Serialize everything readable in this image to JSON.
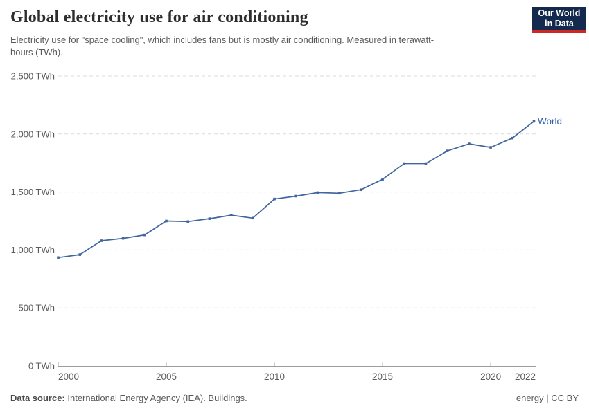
{
  "header": {
    "title": "Global electricity use for air conditioning",
    "subtitle": "Electricity use for \"space cooling\", which includes fans but is mostly air conditioning. Measured in terawatt-hours (TWh)."
  },
  "logo": {
    "line1": "Our World",
    "line2": "in Data"
  },
  "chart_data": {
    "type": "line",
    "title": "Global electricity use for air conditioning",
    "unit": "TWh",
    "x": [
      2000,
      2001,
      2002,
      2003,
      2004,
      2005,
      2006,
      2007,
      2008,
      2009,
      2010,
      2011,
      2012,
      2013,
      2014,
      2015,
      2016,
      2017,
      2018,
      2019,
      2020,
      2021,
      2022
    ],
    "series": [
      {
        "name": "World",
        "values": [
          935,
          960,
          1080,
          1100,
          1130,
          1250,
          1245,
          1270,
          1300,
          1275,
          1440,
          1465,
          1495,
          1490,
          1520,
          1610,
          1745,
          1745,
          1855,
          1915,
          1885,
          1965,
          2110
        ]
      }
    ],
    "ylim": [
      0,
      2500
    ],
    "yticks": [
      {
        "value": 0,
        "label": "0 TWh"
      },
      {
        "value": 500,
        "label": "500 TWh"
      },
      {
        "value": 1000,
        "label": "1,000 TWh"
      },
      {
        "value": 1500,
        "label": "1,500 TWh"
      },
      {
        "value": 2000,
        "label": "2,000 TWh"
      },
      {
        "value": 2500,
        "label": "2,500 TWh"
      }
    ],
    "xticks": [
      {
        "value": 2000,
        "label": "2000"
      },
      {
        "value": 2005,
        "label": "2005"
      },
      {
        "value": 2010,
        "label": "2010"
      },
      {
        "value": 2015,
        "label": "2015"
      },
      {
        "value": 2020,
        "label": "2020"
      },
      {
        "value": 2022,
        "label": "2022"
      }
    ],
    "grid": "horizontal-dashed",
    "legend_position": "end-of-line"
  },
  "footer": {
    "source_label": "Data source:",
    "source_text": " International Energy Agency (IEA). Buildings.",
    "license": "energy | CC BY"
  },
  "colors": {
    "line": "#41659e",
    "series_label": "#3360a9",
    "grid": "#dbdbdb",
    "axis": "#9c9c9c",
    "tick_text": "#5b5b5b",
    "logo_bg": "#13294e",
    "logo_red": "#cd2823"
  }
}
